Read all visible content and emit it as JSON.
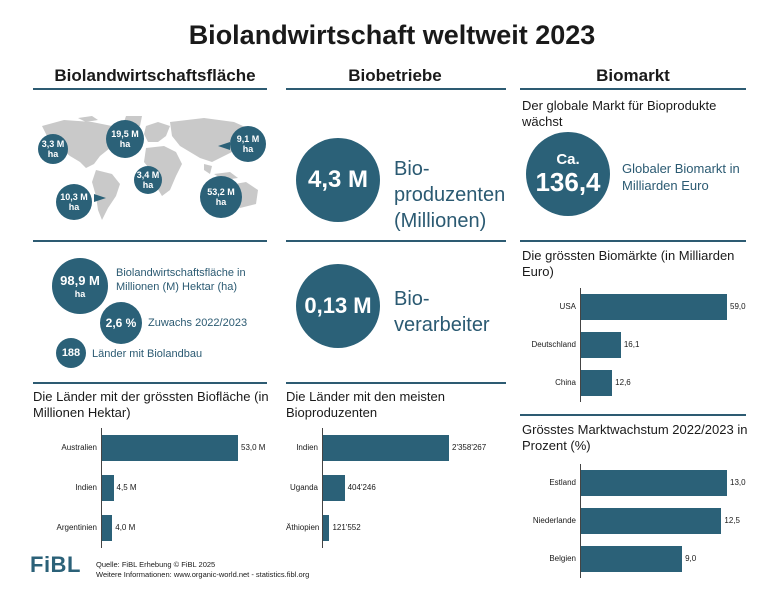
{
  "title": "Biolandwirtschaft weltweit 2023",
  "columns": {
    "flaeche": "Biolandwirtschaftsfläche",
    "betriebe": "Biobetriebe",
    "markt": "Biomarkt"
  },
  "map_bubbles": [
    {
      "value": "3,3 M",
      "unit": "ha"
    },
    {
      "value": "19,5 M",
      "unit": "ha"
    },
    {
      "value": "9,1 M",
      "unit": "ha"
    },
    {
      "value": "3,4 M",
      "unit": "ha"
    },
    {
      "value": "10,3 M",
      "unit": "ha"
    },
    {
      "value": "53,2 M",
      "unit": "ha"
    }
  ],
  "stats": {
    "area_value": "98,9 M",
    "area_unit": "ha",
    "area_label": "Biolandwirtschaftsfläche in Millionen (M) Hektar (ha)",
    "growth_value": "2,6 %",
    "growth_label": "Zuwachs 2022/2023",
    "countries_value": "188",
    "countries_label": "Länder mit Biolandbau"
  },
  "producers": {
    "value": "4,3 M",
    "label_line1": "Bio-",
    "label_line2": "produzenten",
    "label_line3": "(Millionen)"
  },
  "processors": {
    "value": "0,13 M",
    "label_line1": "Bio-",
    "label_line2": "verarbeiter"
  },
  "market": {
    "subtitle": "Der globale Markt für Bioprodukte wächst",
    "circle_prefix": "Ca.",
    "circle_value": "136,4",
    "label": "Globaler Biomarkt in Milliarden Euro"
  },
  "chart_data": [
    {
      "type": "bar",
      "title": "Die Länder mit der grössten Biofläche (in Millionen Hektar)",
      "categories": [
        "Australien",
        "Indien",
        "Argentinien"
      ],
      "values": [
        53.0,
        4.5,
        4.0
      ],
      "labels": [
        "53,0 M",
        "4,5 M",
        "4,0 M"
      ],
      "orientation": "horizontal"
    },
    {
      "type": "bar",
      "title": "Die Länder mit den meisten Bioproduzenten",
      "categories": [
        "Indien",
        "Uganda",
        "Äthiopien"
      ],
      "values": [
        2358267,
        404246,
        121552
      ],
      "labels": [
        "2'358'267",
        "404'246",
        "121'552"
      ],
      "orientation": "horizontal"
    },
    {
      "type": "bar",
      "title": "Die grössten Biomärkte (in Milliarden Euro)",
      "categories": [
        "USA",
        "Deutschland",
        "China"
      ],
      "values": [
        59.0,
        16.1,
        12.6
      ],
      "labels": [
        "59,0",
        "16,1",
        "12,6"
      ],
      "orientation": "horizontal"
    },
    {
      "type": "bar",
      "title": "Grösstes Marktwachstum 2022/2023 in Prozent (%)",
      "categories": [
        "Estland",
        "Niederlande",
        "Belgien"
      ],
      "values": [
        13.0,
        12.5,
        9.0
      ],
      "labels": [
        "13,0",
        "12,5",
        "9,0"
      ],
      "orientation": "horizontal"
    }
  ],
  "footer": {
    "logo": "FiBL",
    "line1": "Quelle: FiBL Erhebung © FiBL 2025",
    "line2": "Weitere Informationen: www.organic-world.net - statistics.fibl.org"
  },
  "colors": {
    "accent": "#2b6178",
    "rule": "#2d5b72",
    "map": "#c9c9c9"
  }
}
